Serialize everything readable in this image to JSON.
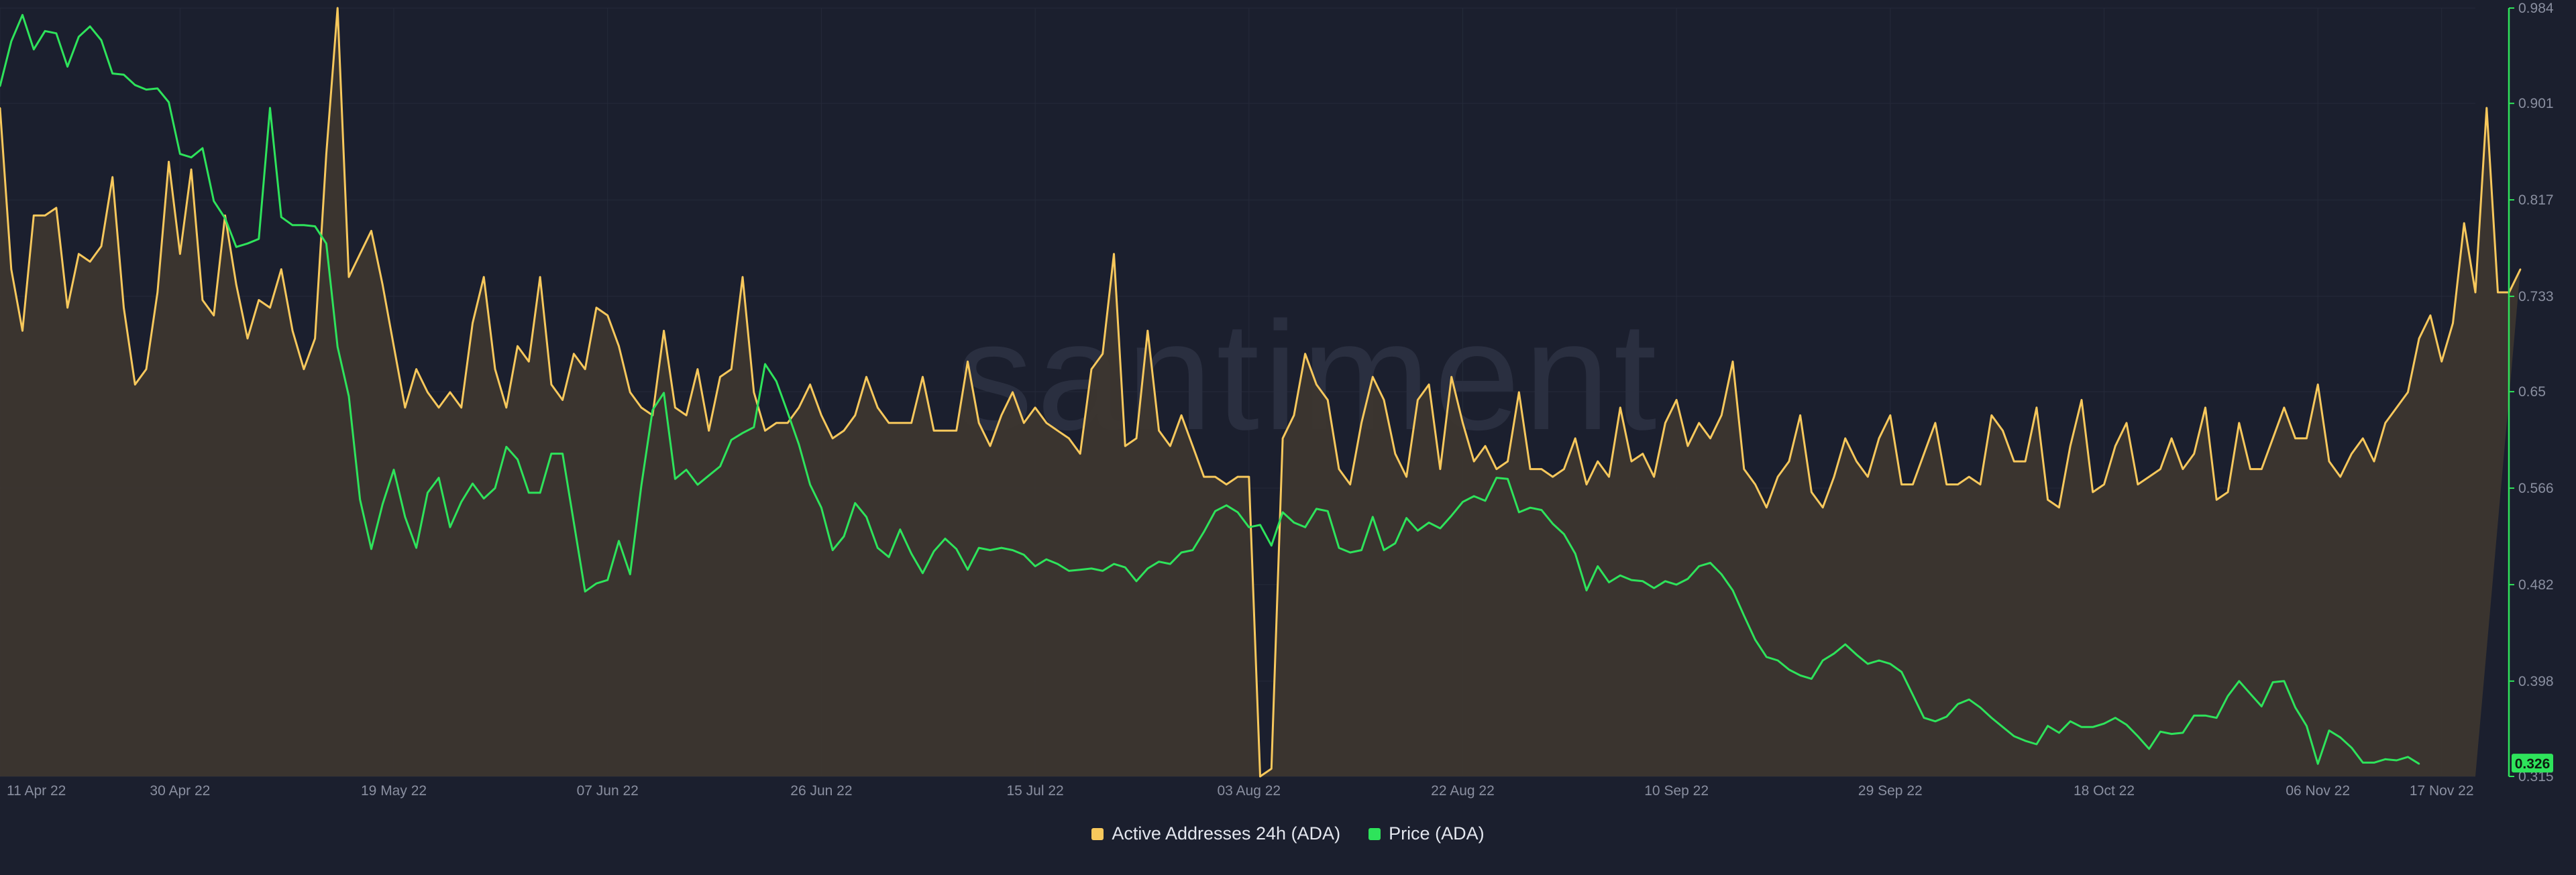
{
  "watermark": "santiment",
  "legend": {
    "active_label": "Active Addresses 24h (ADA)",
    "price_label": "Price (ADA)"
  },
  "colors": {
    "background": "#1b1f2e",
    "active_addresses": "#f7c85c",
    "active_area_fill": "#3c362f",
    "price": "#2ee35b",
    "price_badge_text": "#0d1b10",
    "axis_text": "#8a8fa0",
    "grid": "#252a3a"
  },
  "chart_data": {
    "type": "line",
    "x_start": "11 Apr 22",
    "x_end": "17 Nov 22",
    "x_points": 221,
    "x_tick_labels": [
      "11 Apr 22",
      "30 Apr 22",
      "19 May 22",
      "07 Jun 22",
      "26 Jun 22",
      "15 Jul 22",
      "03 Aug 22",
      "22 Aug 22",
      "10 Sep 22",
      "29 Sep 22",
      "18 Oct 22",
      "06 Nov 22",
      "17 Nov 22"
    ],
    "x_tick_index": [
      0,
      16,
      35,
      54,
      73,
      92,
      111,
      130,
      149,
      168,
      187,
      206,
      217
    ],
    "grid": true,
    "legend_position": "bottom",
    "y_right": {
      "ticks": [
        0.984,
        0.901,
        0.817,
        0.733,
        0.65,
        0.566,
        0.482,
        0.398,
        0.315
      ],
      "tick_labels": [
        "0.984",
        "0.901",
        "0.817",
        "0.733",
        "0.65",
        "0.566",
        "0.482",
        "0.398",
        "0.315"
      ],
      "ylim": [
        0.315,
        0.984
      ],
      "current_value_label": "0.326"
    },
    "series": [
      {
        "name": "Active Addresses 24h (ADA)",
        "style": "area",
        "axis": "hidden",
        "ylim": [
          0,
          100
        ],
        "values": [
          87,
          66,
          58,
          73,
          73,
          74,
          61,
          68,
          67,
          69,
          78,
          61,
          51,
          53,
          63,
          80,
          68,
          79,
          62,
          60,
          73,
          64,
          57,
          62,
          61,
          66,
          58,
          53,
          57,
          81,
          100,
          65,
          68,
          71,
          64,
          56,
          48,
          53,
          50,
          48,
          50,
          48,
          59,
          65,
          53,
          48,
          56,
          54,
          65,
          51,
          49,
          55,
          53,
          61,
          60,
          56,
          50,
          48,
          47,
          58,
          48,
          47,
          53,
          45,
          52,
          53,
          65,
          50,
          45,
          46,
          46,
          48,
          51,
          47,
          44,
          45,
          47,
          52,
          48,
          46,
          46,
          46,
          52,
          45,
          45,
          45,
          54,
          46,
          43,
          47,
          50,
          46,
          48,
          46,
          45,
          44,
          42,
          53,
          55,
          68,
          43,
          44,
          58,
          45,
          43,
          47,
          43,
          39,
          39,
          38,
          39,
          39,
          0,
          1,
          44,
          47,
          55,
          51,
          49,
          40,
          38,
          46,
          52,
          49,
          42,
          39,
          49,
          51,
          40,
          52,
          46,
          41,
          43,
          40,
          41,
          50,
          40,
          40,
          39,
          40,
          44,
          38,
          41,
          39,
          48,
          41,
          42,
          39,
          46,
          49,
          43,
          46,
          44,
          47,
          54,
          40,
          38,
          35,
          39,
          41,
          47,
          37,
          35,
          39,
          44,
          41,
          39,
          44,
          47,
          38,
          38,
          42,
          46,
          38,
          38,
          39,
          38,
          47,
          45,
          41,
          41,
          48,
          36,
          35,
          43,
          49,
          37,
          38,
          43,
          46,
          38,
          39,
          40,
          44,
          40,
          42,
          48,
          36,
          37,
          46,
          40,
          40,
          44,
          48,
          44,
          44,
          51,
          41,
          39,
          42,
          44,
          41,
          46,
          48,
          50,
          57,
          60,
          54,
          59,
          72,
          63,
          87,
          63,
          63,
          66
        ]
      },
      {
        "name": "Price (ADA)",
        "style": "line",
        "axis": "right",
        "values": [
          0.916,
          0.955,
          0.978,
          0.948,
          0.964,
          0.962,
          0.933,
          0.959,
          0.968,
          0.956,
          0.927,
          0.926,
          0.917,
          0.913,
          0.914,
          0.902,
          0.857,
          0.854,
          0.862,
          0.816,
          0.801,
          0.776,
          0.779,
          0.783,
          0.897,
          0.802,
          0.795,
          0.795,
          0.794,
          0.779,
          0.689,
          0.646,
          0.556,
          0.513,
          0.552,
          0.582,
          0.541,
          0.514,
          0.562,
          0.575,
          0.532,
          0.554,
          0.57,
          0.557,
          0.566,
          0.602,
          0.591,
          0.562,
          0.562,
          0.596,
          0.596,
          0.536,
          0.476,
          0.483,
          0.486,
          0.52,
          0.491,
          0.568,
          0.634,
          0.649,
          0.574,
          0.582,
          0.569,
          0.577,
          0.585,
          0.608,
          0.614,
          0.619,
          0.674,
          0.659,
          0.632,
          0.604,
          0.569,
          0.549,
          0.512,
          0.524,
          0.553,
          0.541,
          0.514,
          0.506,
          0.53,
          0.509,
          0.492,
          0.511,
          0.522,
          0.513,
          0.495,
          0.514,
          0.512,
          0.514,
          0.512,
          0.508,
          0.498,
          0.504,
          0.5,
          0.494,
          0.495,
          0.496,
          0.494,
          0.5,
          0.497,
          0.485,
          0.496,
          0.502,
          0.5,
          0.51,
          0.512,
          0.528,
          0.546,
          0.551,
          0.545,
          0.532,
          0.534,
          0.516,
          0.545,
          0.536,
          0.532,
          0.548,
          0.546,
          0.514,
          0.51,
          0.512,
          0.541,
          0.512,
          0.518,
          0.54,
          0.529,
          0.536,
          0.531,
          0.542,
          0.554,
          0.559,
          0.555,
          0.575,
          0.574,
          0.545,
          0.549,
          0.547,
          0.535,
          0.526,
          0.509,
          0.477,
          0.498,
          0.484,
          0.49,
          0.486,
          0.485,
          0.479,
          0.485,
          0.482,
          0.487,
          0.498,
          0.501,
          0.491,
          0.477,
          0.455,
          0.434,
          0.419,
          0.416,
          0.408,
          0.403,
          0.4,
          0.416,
          0.422,
          0.43,
          0.421,
          0.413,
          0.416,
          0.413,
          0.406,
          0.386,
          0.366,
          0.363,
          0.367,
          0.378,
          0.382,
          0.375,
          0.366,
          0.358,
          0.35,
          0.346,
          0.343,
          0.359,
          0.353,
          0.363,
          0.358,
          0.358,
          0.361,
          0.366,
          0.36,
          0.35,
          0.339,
          0.354,
          0.352,
          0.353,
          0.368,
          0.368,
          0.366,
          0.385,
          0.398,
          0.387,
          0.376,
          0.397,
          0.398,
          0.375,
          0.359,
          0.326,
          0.355,
          0.349,
          0.34,
          0.327,
          0.327,
          0.33,
          0.329,
          0.332,
          0.326
        ]
      }
    ]
  }
}
